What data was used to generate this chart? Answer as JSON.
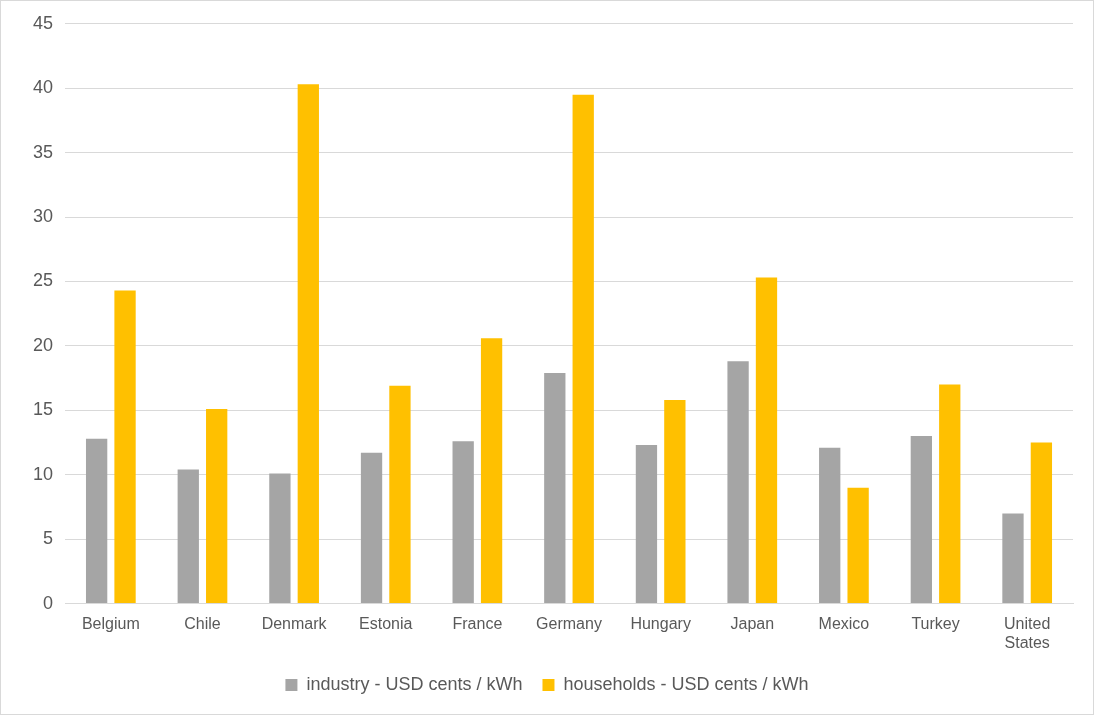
{
  "chart_data": {
    "type": "bar",
    "categories": [
      "Belgium",
      "Chile",
      "Denmark",
      "Estonia",
      "France",
      "Germany",
      "Hungary",
      "Japan",
      "Mexico",
      "Turkey",
      "United States"
    ],
    "series": [
      {
        "name": "industry - USD cents / kWh",
        "color": "#a5a5a5",
        "values": [
          12.8,
          10.4,
          10.1,
          11.7,
          12.6,
          17.9,
          12.3,
          18.8,
          12.1,
          13.0,
          7.0
        ]
      },
      {
        "name": "households - USD cents / kWh",
        "color": "#ffc000",
        "values": [
          24.3,
          15.1,
          40.3,
          16.9,
          20.6,
          39.5,
          15.8,
          25.3,
          9.0,
          17.0,
          12.5
        ]
      }
    ],
    "ylim": [
      0,
      45
    ],
    "yticks": [
      0,
      5,
      10,
      15,
      20,
      25,
      30,
      35,
      40,
      45
    ],
    "grid": "y",
    "legend": "bottom"
  }
}
